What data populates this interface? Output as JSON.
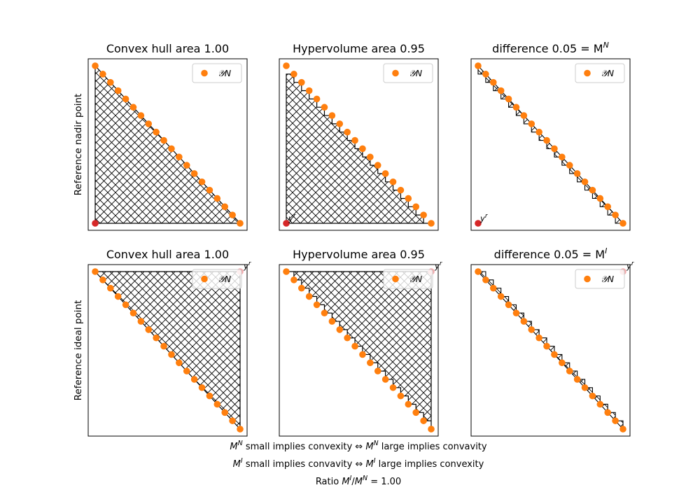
{
  "chart_data": {
    "type": "scatter",
    "series_name": "𝒴N",
    "point_count": 20,
    "front": {
      "x_from": 0.0,
      "x_to": 1.0,
      "y_from": 1.0,
      "y_to": 0.0
    },
    "rows": [
      {
        "label": "Reference nadir point",
        "reference": "nadir",
        "reference_label": "y^r"
      },
      {
        "label": "Reference ideal point",
        "reference": "ideal",
        "reference_label": "y^r"
      }
    ],
    "panels": [
      {
        "title": "Convex hull area 1.00",
        "kind": "hull",
        "row": 0
      },
      {
        "title": "Hypervolume area 0.95",
        "kind": "hypervolume",
        "row": 0
      },
      {
        "title": "difference 0.05 = M",
        "title_sup": "N",
        "kind": "difference",
        "row": 0
      },
      {
        "title": "Convex hull area 1.00",
        "kind": "hull",
        "row": 1
      },
      {
        "title": "Hypervolume area 0.95",
        "kind": "hypervolume",
        "row": 1
      },
      {
        "title": "difference 0.05 = M",
        "title_sup": "I",
        "kind": "difference",
        "row": 1
      }
    ],
    "colors": {
      "points": "#ff7f0e",
      "reference_nadir": "#d62728",
      "reference_ideal": "#f4a9ab",
      "hatch": "#000000"
    },
    "grid": false,
    "legend": "upper right",
    "captions": [
      [
        {
          "t": "M"
        },
        {
          "t": "N",
          "sup": true
        },
        {
          "t": " small implies convexity ⇔ "
        },
        {
          "t": "M"
        },
        {
          "t": "N",
          "sup": true
        },
        {
          "t": " large implies convavity"
        }
      ],
      [
        {
          "t": "M"
        },
        {
          "t": "I",
          "sup": true
        },
        {
          "t": " small implies convavity ⇔ "
        },
        {
          "t": "M"
        },
        {
          "t": "I",
          "sup": true
        },
        {
          "t": " large implies convexity"
        }
      ],
      [
        {
          "t": "Ratio "
        },
        {
          "t": "M"
        },
        {
          "t": "I",
          "sup": true
        },
        {
          "t": "/"
        },
        {
          "t": "M"
        },
        {
          "t": "N",
          "sup": true
        },
        {
          "t": " = 1.00"
        }
      ]
    ]
  }
}
